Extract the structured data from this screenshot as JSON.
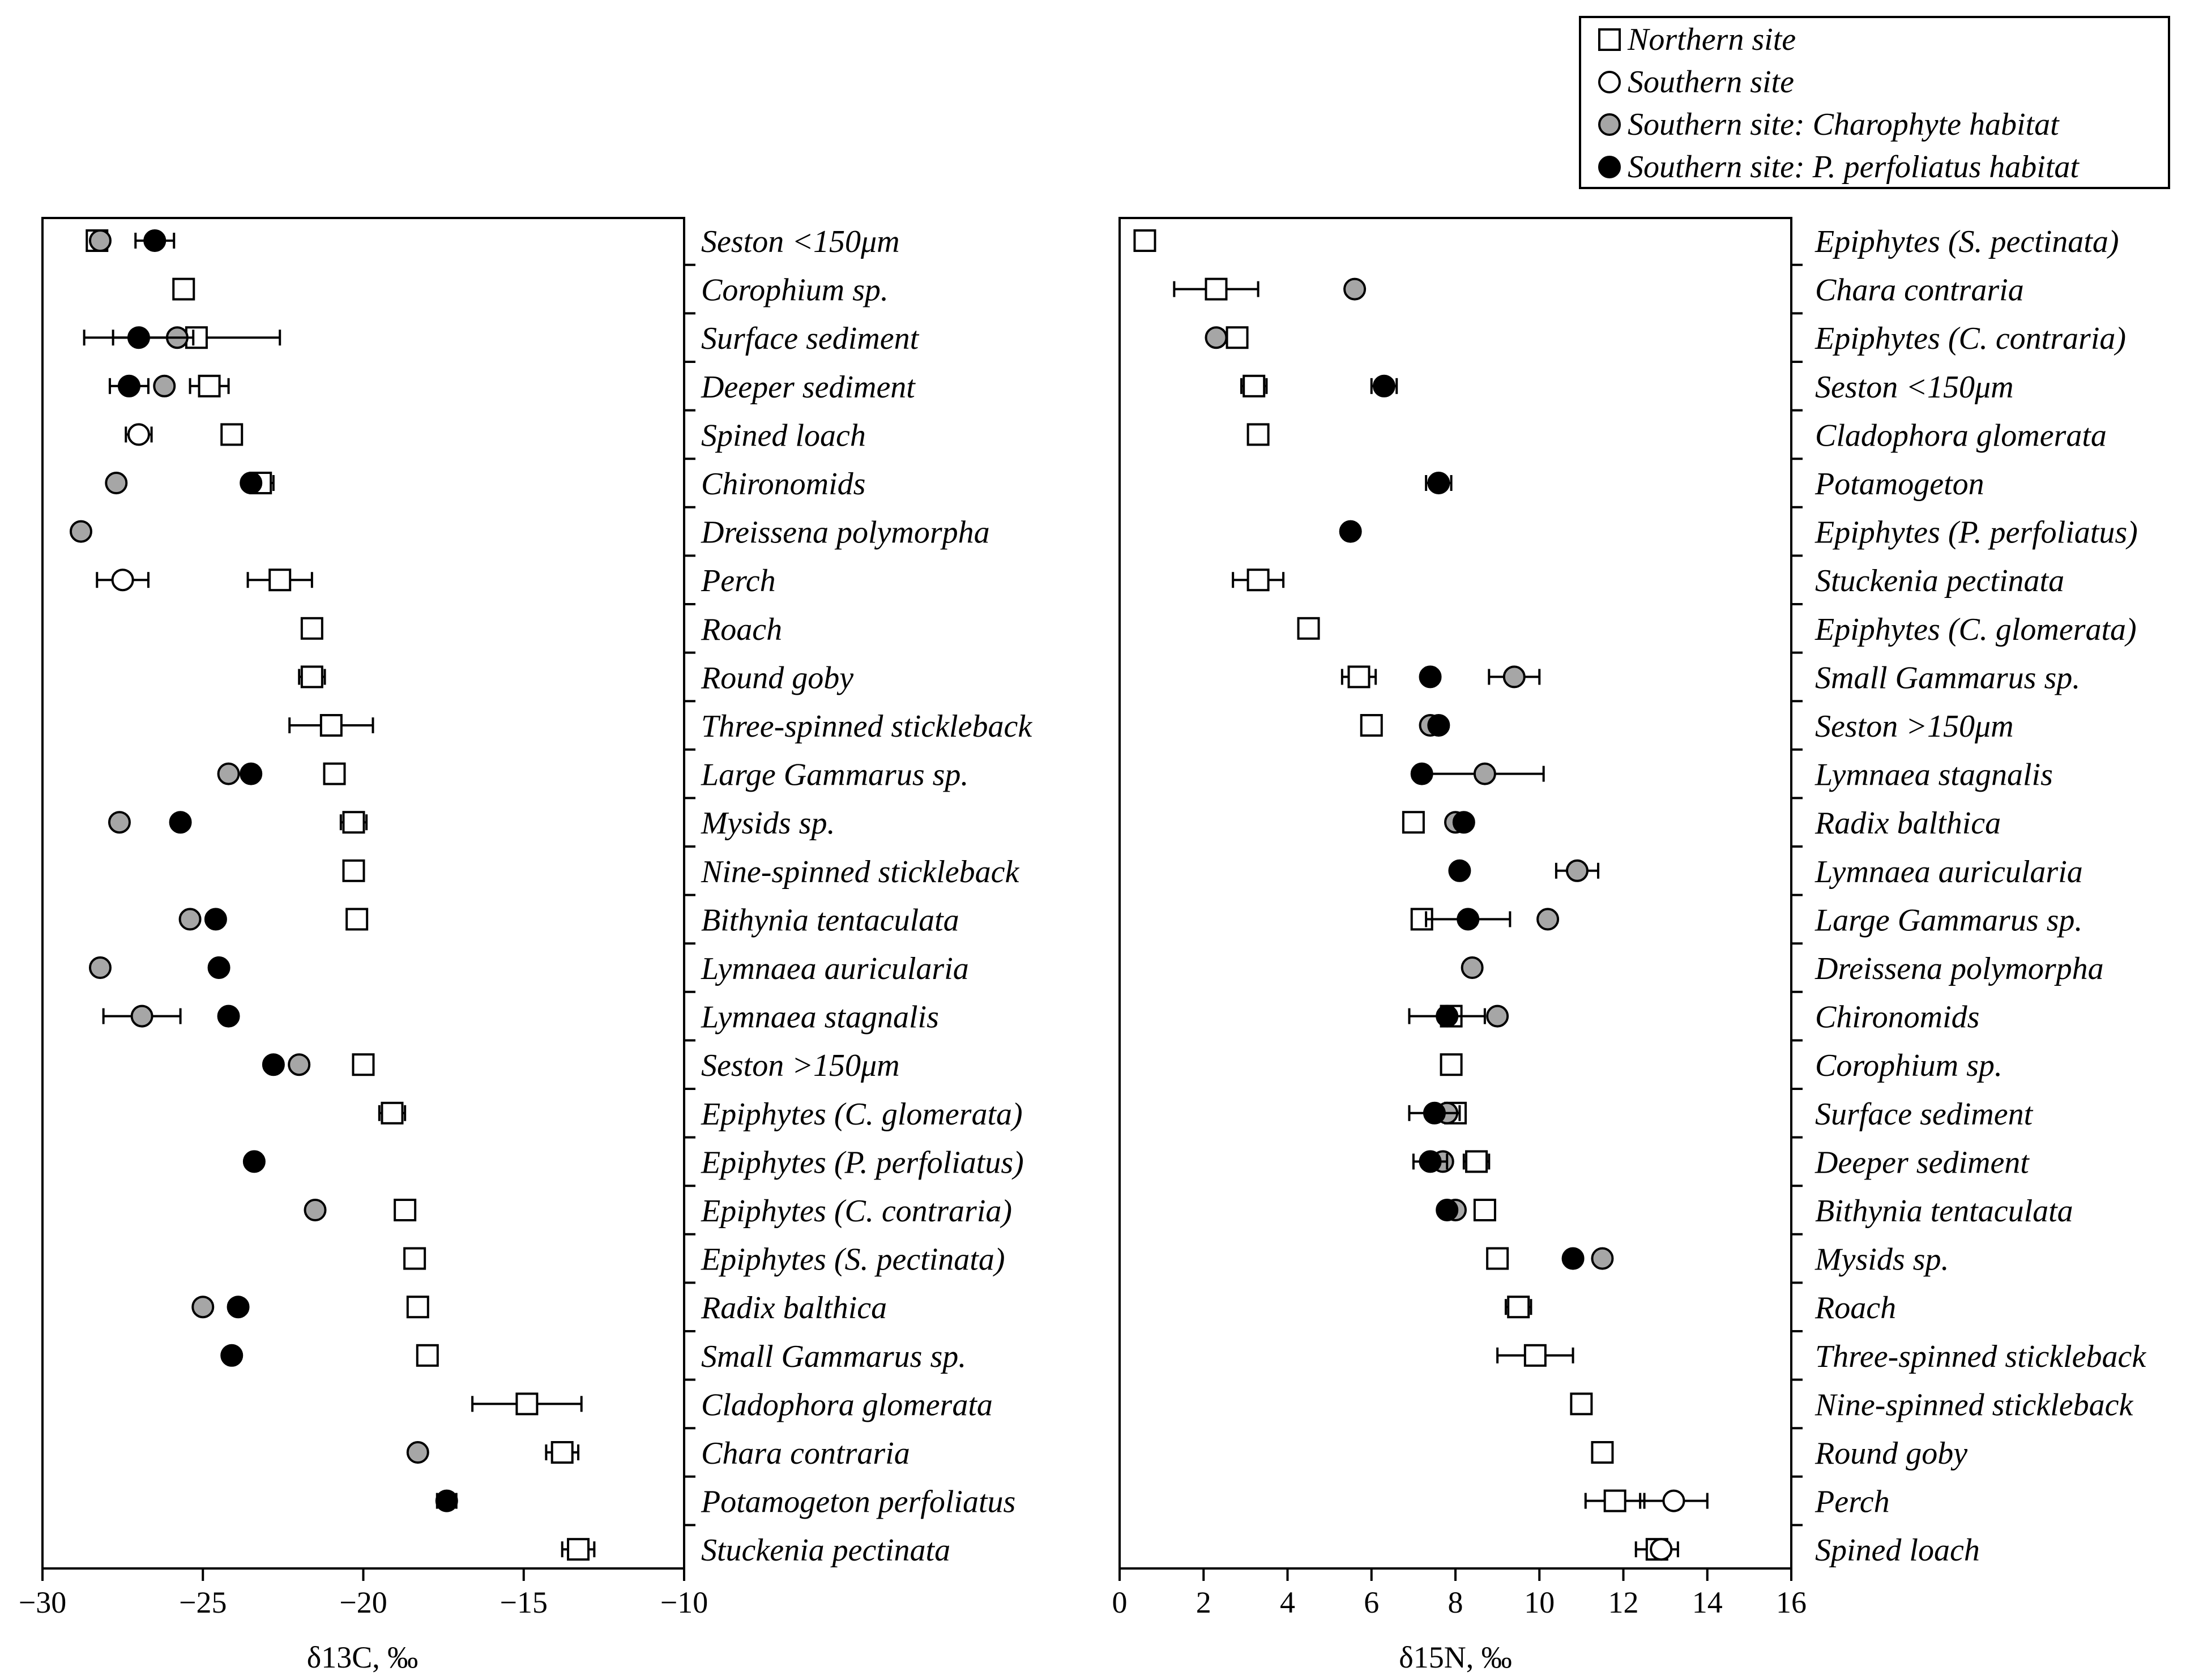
{
  "legend": {
    "items": [
      {
        "label": "Northern site",
        "marker": "open-square"
      },
      {
        "label": "Southern site",
        "marker": "open-circle"
      },
      {
        "label": "Southern site: Charophyte habitat",
        "marker": "grey-circle"
      },
      {
        "label": "Southern site: P. perfoliatus habitat",
        "marker": "black-circle"
      }
    ]
  },
  "colors": {
    "grey_fill": "#a6a6a6",
    "black_fill": "#000000",
    "open_fill": "#ffffff",
    "stroke": "#000000"
  },
  "chart_data": [
    {
      "type": "scatter",
      "orientation": "horizontal, categories on right-side y axis",
      "xlabel": "δ13C, ‰",
      "xlim": [
        -30,
        -10
      ],
      "xticks": [
        "−30",
        "−25",
        "−20",
        "−15",
        "−10"
      ],
      "categories": [
        "Seston <150μm",
        "Corophium sp.",
        "Surface sediment",
        "Deeper sediment",
        "Spined loach",
        "Chironomids",
        "Dreissena polymorpha",
        "Perch",
        "Roach",
        "Round goby",
        "Three-spinned stickleback",
        "Large Gammarus sp.",
        "Mysids sp.",
        "Nine-spinned stickleback",
        "Bithynia tentaculata",
        "Lymnaea auricularia",
        "Lymnaea stagnalis",
        "Seston >150μm",
        "Epiphytes (C. glomerata)",
        "Epiphytes (P. perfoliatus)",
        "Epiphytes (C. contraria)",
        "Epiphytes (S. pectinata)",
        "Radix balthica",
        "Small Gammarus sp.",
        "Cladophora glomerata",
        "Chara contraria",
        "Potamogeton perfoliatus",
        "Stuckenia pectinata"
      ],
      "series": [
        {
          "name": "Northern site",
          "marker": "open-square",
          "points": [
            {
              "category": "Seston <150μm",
              "x": -28.3,
              "err": 0.3
            },
            {
              "category": "Corophium sp.",
              "x": -25.6
            },
            {
              "category": "Surface sediment",
              "x": -25.2,
              "err": 2.6
            },
            {
              "category": "Deeper sediment",
              "x": -24.8,
              "err": 0.6
            },
            {
              "category": "Spined loach",
              "x": -24.1
            },
            {
              "category": "Chironomids",
              "x": -23.2,
              "err": 0.4
            },
            {
              "category": "Perch",
              "x": -22.6,
              "err": 1.0
            },
            {
              "category": "Roach",
              "x": -21.6,
              "err": 0.2
            },
            {
              "category": "Round goby",
              "x": -21.6,
              "err": 0.4
            },
            {
              "category": "Three-spinned stickleback",
              "x": -21.0,
              "err": 1.3
            },
            {
              "category": "Large Gammarus sp.",
              "x": -20.9
            },
            {
              "category": "Mysids sp.",
              "x": -20.3,
              "err": 0.4
            },
            {
              "category": "Nine-spinned stickleback",
              "x": -20.3
            },
            {
              "category": "Bithynia tentaculata",
              "x": -20.2
            },
            {
              "category": "Seston >150μm",
              "x": -20.0
            },
            {
              "category": "Epiphytes (C. glomerata)",
              "x": -19.1,
              "err": 0.4
            },
            {
              "category": "Epiphytes (C. contraria)",
              "x": -18.7
            },
            {
              "category": "Epiphytes (S. pectinata)",
              "x": -18.4
            },
            {
              "category": "Radix balthica",
              "x": -18.3
            },
            {
              "category": "Small Gammarus sp.",
              "x": -18.0
            },
            {
              "category": "Cladophora glomerata",
              "x": -14.9,
              "err": 1.7
            },
            {
              "category": "Chara contraria",
              "x": -13.8,
              "err": 0.5
            },
            {
              "category": "Stuckenia pectinata",
              "x": -13.3,
              "err": 0.5
            }
          ]
        },
        {
          "name": "Southern site",
          "marker": "open-circle",
          "points": [
            {
              "category": "Spined loach",
              "x": -27.0,
              "err": 0.4
            },
            {
              "category": "Perch",
              "x": -27.5,
              "err": 0.8
            }
          ]
        },
        {
          "name": "Southern site: Charophyte habitat",
          "marker": "grey-circle",
          "points": [
            {
              "category": "Seston <150μm",
              "x": -28.2
            },
            {
              "category": "Surface sediment",
              "x": -25.8
            },
            {
              "category": "Deeper sediment",
              "x": -26.2
            },
            {
              "category": "Chironomids",
              "x": -27.7
            },
            {
              "category": "Dreissena polymorpha",
              "x": -28.8
            },
            {
              "category": "Large Gammarus sp.",
              "x": -24.2
            },
            {
              "category": "Mysids sp.",
              "x": -27.6
            },
            {
              "category": "Bithynia tentaculata",
              "x": -25.4
            },
            {
              "category": "Lymnaea auricularia",
              "x": -28.2
            },
            {
              "category": "Lymnaea stagnalis",
              "x": -26.9,
              "err": 1.2
            },
            {
              "category": "Seston >150μm",
              "x": -22.0
            },
            {
              "category": "Epiphytes (C. contraria)",
              "x": -21.5
            },
            {
              "category": "Radix balthica",
              "x": -25.0
            },
            {
              "category": "Chara contraria",
              "x": -18.3
            }
          ]
        },
        {
          "name": "Southern site: P. perfoliatus habitat",
          "marker": "black-circle",
          "points": [
            {
              "category": "Seston <150μm",
              "x": -26.5,
              "err": 0.6
            },
            {
              "category": "Surface sediment",
              "x": -27.0,
              "err": 1.7
            },
            {
              "category": "Deeper sediment",
              "x": -27.3,
              "err": 0.6
            },
            {
              "category": "Chironomids",
              "x": -23.5
            },
            {
              "category": "Large Gammarus sp.",
              "x": -23.5
            },
            {
              "category": "Mysids sp.",
              "x": -25.7
            },
            {
              "category": "Bithynia tentaculata",
              "x": -24.6
            },
            {
              "category": "Lymnaea auricularia",
              "x": -24.5
            },
            {
              "category": "Lymnaea stagnalis",
              "x": -24.2
            },
            {
              "category": "Seston >150μm",
              "x": -22.8
            },
            {
              "category": "Epiphytes (P. perfoliatus)",
              "x": -23.4
            },
            {
              "category": "Radix balthica",
              "x": -23.9
            },
            {
              "category": "Small Gammarus sp.",
              "x": -24.1
            },
            {
              "category": "Potamogeton perfoliatus",
              "x": -17.4,
              "err": 0.3
            }
          ]
        }
      ]
    },
    {
      "type": "scatter",
      "orientation": "horizontal, categories on right-side y axis",
      "xlabel": "δ15N, ‰",
      "xlim": [
        0,
        16
      ],
      "xticks": [
        "0",
        "2",
        "4",
        "6",
        "8",
        "10",
        "12",
        "14",
        "16"
      ],
      "categories": [
        "Epiphytes (S. pectinata)",
        "Chara contraria",
        "Epiphytes (C. contraria)",
        "Seston <150μm",
        "Cladophora glomerata",
        "Potamogeton",
        "Epiphytes (P. perfoliatus)",
        "Stuckenia pectinata",
        "Epiphytes (C. glomerata)",
        "Small Gammarus sp.",
        "Seston >150μm",
        "Lymnaea stagnalis",
        "Radix balthica",
        "Lymnaea auricularia",
        "Large Gammarus sp.",
        "Dreissena polymorpha",
        "Chironomids",
        "Corophium sp.",
        "Surface sediment",
        "Deeper sediment",
        "Bithynia tentaculata",
        "Mysids sp.",
        "Roach",
        "Three-spinned stickleback",
        "Nine-spinned stickleback",
        "Round goby",
        "Perch",
        "Spined loach"
      ],
      "series": [
        {
          "name": "Northern site",
          "marker": "open-square",
          "points": [
            {
              "category": "Epiphytes (S. pectinata)",
              "x": 0.6
            },
            {
              "category": "Chara contraria",
              "x": 2.3,
              "err": 1.0
            },
            {
              "category": "Epiphytes (C. contraria)",
              "x": 2.8
            },
            {
              "category": "Seston <150μm",
              "x": 3.2,
              "err": 0.3
            },
            {
              "category": "Cladophora glomerata",
              "x": 3.3
            },
            {
              "category": "Stuckenia pectinata",
              "x": 3.3,
              "err": 0.6
            },
            {
              "category": "Epiphytes (C. glomerata)",
              "x": 4.5
            },
            {
              "category": "Small Gammarus sp.",
              "x": 5.7,
              "err": 0.4
            },
            {
              "category": "Seston >150μm",
              "x": 6.0
            },
            {
              "category": "Radix balthica",
              "x": 7.0
            },
            {
              "category": "Large Gammarus sp.",
              "x": 7.2
            },
            {
              "category": "Chironomids",
              "x": 7.9
            },
            {
              "category": "Corophium sp.",
              "x": 7.9
            },
            {
              "category": "Surface sediment",
              "x": 8.0
            },
            {
              "category": "Deeper sediment",
              "x": 8.5,
              "err": 0.3
            },
            {
              "category": "Bithynia tentaculata",
              "x": 8.7
            },
            {
              "category": "Mysids sp.",
              "x": 9.0
            },
            {
              "category": "Roach",
              "x": 9.5,
              "err": 0.3
            },
            {
              "category": "Three-spinned stickleback",
              "x": 9.9,
              "err": 0.9
            },
            {
              "category": "Nine-spinned stickleback",
              "x": 11.0
            },
            {
              "category": "Round goby",
              "x": 11.5
            },
            {
              "category": "Perch",
              "x": 11.8,
              "err": 0.7
            },
            {
              "category": "Spined loach",
              "x": 12.8,
              "err": 0.5
            }
          ]
        },
        {
          "name": "Southern site",
          "marker": "open-circle",
          "points": [
            {
              "category": "Perch",
              "x": 13.2,
              "err": 0.8
            },
            {
              "category": "Spined loach",
              "x": 12.9
            }
          ]
        },
        {
          "name": "Southern site: Charophyte habitat",
          "marker": "grey-circle",
          "points": [
            {
              "category": "Chara contraria",
              "x": 5.6
            },
            {
              "category": "Epiphytes (C. contraria)",
              "x": 2.3
            },
            {
              "category": "Small Gammarus sp.",
              "x": 9.4,
              "err": 0.6
            },
            {
              "category": "Seston >150μm",
              "x": 7.4
            },
            {
              "category": "Lymnaea stagnalis",
              "x": 8.7,
              "err": 1.4
            },
            {
              "category": "Radix balthica",
              "x": 8.0
            },
            {
              "category": "Lymnaea auricularia",
              "x": 10.9,
              "err": 0.5
            },
            {
              "category": "Large Gammarus sp.",
              "x": 10.2
            },
            {
              "category": "Dreissena polymorpha",
              "x": 8.4
            },
            {
              "category": "Chironomids",
              "x": 9.0
            },
            {
              "category": "Surface sediment",
              "x": 7.8
            },
            {
              "category": "Deeper sediment",
              "x": 7.7
            },
            {
              "category": "Bithynia tentaculata",
              "x": 8.0
            },
            {
              "category": "Mysids sp.",
              "x": 11.5
            }
          ]
        },
        {
          "name": "Southern site: P. perfoliatus habitat",
          "marker": "black-circle",
          "points": [
            {
              "category": "Seston <150μm",
              "x": 6.3,
              "err": 0.3
            },
            {
              "category": "Potamogeton",
              "x": 7.6,
              "err": 0.3
            },
            {
              "category": "Epiphytes (P. perfoliatus)",
              "x": 5.5
            },
            {
              "category": "Small Gammarus sp.",
              "x": 7.4
            },
            {
              "category": "Seston >150μm",
              "x": 7.6
            },
            {
              "category": "Lymnaea stagnalis",
              "x": 7.2
            },
            {
              "category": "Radix balthica",
              "x": 8.2
            },
            {
              "category": "Lymnaea auricularia",
              "x": 8.1
            },
            {
              "category": "Large Gammarus sp.",
              "x": 8.3,
              "err": 1.0
            },
            {
              "category": "Chironomids",
              "x": 7.8,
              "err": 0.9
            },
            {
              "category": "Surface sediment",
              "x": 7.5,
              "err": 0.6
            },
            {
              "category": "Deeper sediment",
              "x": 7.4,
              "err": 0.4
            },
            {
              "category": "Bithynia tentaculata",
              "x": 7.8
            },
            {
              "category": "Mysids sp.",
              "x": 10.8
            }
          ]
        }
      ]
    }
  ]
}
